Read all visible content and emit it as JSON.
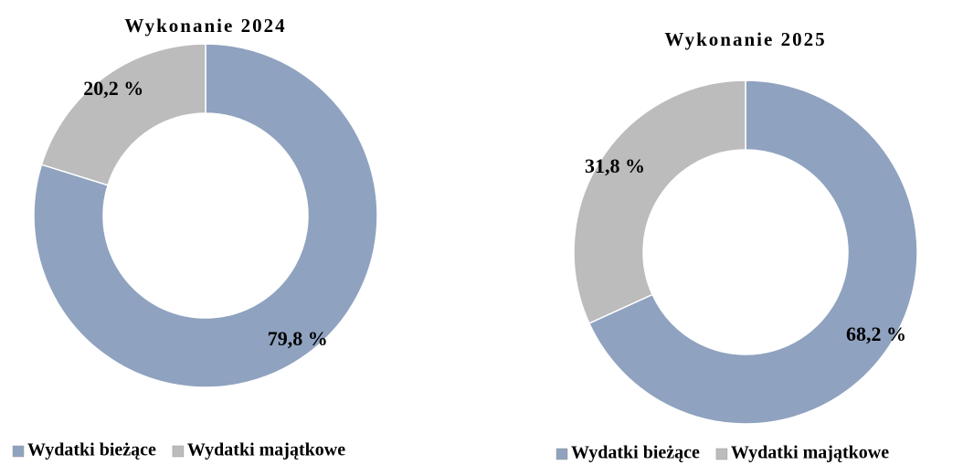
{
  "chart_data": [
    {
      "type": "donut",
      "title": "Wykonanie 2024",
      "categories": [
        "Wydatki bieżące",
        "Wydatki majątkowe"
      ],
      "values": [
        79.8,
        20.2
      ],
      "value_labels": [
        "79,8 %",
        "20,2 %"
      ],
      "colors": [
        "#8fa2bf",
        "#bcbcbc"
      ],
      "legend": "bottom"
    },
    {
      "type": "donut",
      "title": "Wykonanie 2025",
      "categories": [
        "Wydatki bieżące",
        "Wydatki majątkowe"
      ],
      "values": [
        68.2,
        31.8
      ],
      "value_labels": [
        "68,2 %",
        "31,8 %"
      ],
      "colors": [
        "#8fa2bf",
        "#bcbcbc"
      ],
      "legend": "bottom"
    }
  ]
}
